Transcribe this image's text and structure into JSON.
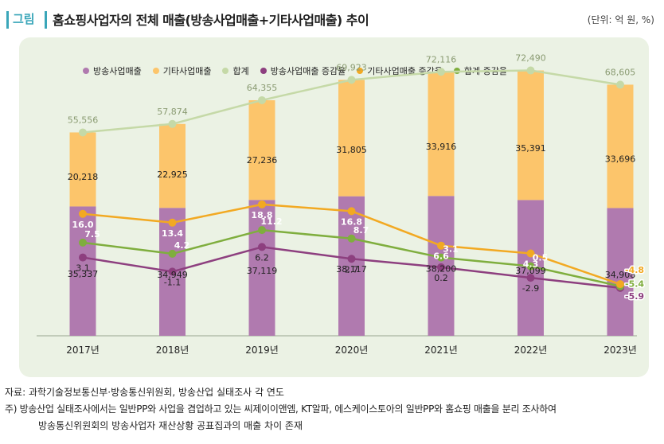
{
  "header": {
    "tag": "그림",
    "title": "홈쇼핑사업자의 전체 매출(방송사업매출+기타사업매출) 추이",
    "unit": "(단위: 억 원, %)"
  },
  "chart_data": {
    "type": "bar",
    "stacked": true,
    "categories": [
      "2017년",
      "2018년",
      "2019년",
      "2020년",
      "2021년",
      "2022년",
      "2023년"
    ],
    "series": [
      {
        "name": "방송사업매출",
        "kind": "bar",
        "color": "#b07aaf",
        "values": [
          35337,
          34949,
          37119,
          38117,
          38200,
          37099,
          34908
        ],
        "labels": [
          "35,337",
          "34,949",
          "37,119",
          "38,117",
          "38,200",
          "37,099",
          "34,908"
        ]
      },
      {
        "name": "기타사업매출",
        "kind": "bar",
        "color": "#fcc56b",
        "values": [
          20218,
          22925,
          27236,
          31805,
          33916,
          35391,
          33696
        ],
        "labels": [
          "20,218",
          "22,925",
          "27,236",
          "31,805",
          "33,916",
          "35,391",
          "33,696"
        ]
      },
      {
        "name": "합계",
        "kind": "line",
        "color": "#c5d9a7",
        "values": [
          55556,
          57874,
          64355,
          69923,
          72116,
          72490,
          68605
        ],
        "labels": [
          "55,556",
          "57,874",
          "64,355",
          "69,923",
          "72,116",
          "72,490",
          "68,605"
        ]
      },
      {
        "name": "방송사업매출 증감율",
        "kind": "line",
        "color": "#8d3f7f",
        "values": [
          3.1,
          -1.1,
          6.2,
          2.7,
          0.2,
          -2.9,
          -5.9
        ],
        "labels": [
          "3.1",
          "-1.1",
          "6.2",
          "2.7",
          "0.2",
          "-2.9",
          "-5.9"
        ]
      },
      {
        "name": "기타사업매출  증감율",
        "kind": "line",
        "color": "#f2a922",
        "values": [
          16.0,
          13.4,
          18.8,
          16.8,
          6.6,
          4.3,
          -4.8
        ],
        "labels": [
          "16.0",
          "13.4",
          "18.8",
          "16.8",
          "6.6",
          "4.3",
          "-4.8"
        ]
      },
      {
        "name": "합계  증감율",
        "kind": "line",
        "color": "#7fae3e",
        "values": [
          7.5,
          4.2,
          11.2,
          8.7,
          3.1,
          0.5,
          -5.4
        ],
        "labels": [
          "7.5",
          "4.2",
          "11.2",
          "8.7",
          "3.1",
          "0.5",
          "-5.4"
        ]
      }
    ],
    "ylim_amount": [
      0,
      80000
    ],
    "ylim_rate": [
      -8,
      40
    ],
    "title": "",
    "xlabel": "",
    "ylabel": ""
  },
  "footer": {
    "source": "자료: 과학기술정보통신부·방송통신위원회, 방송산업 실태조사 각 연도",
    "note_line1": "주) 방송산업 실태조사에서는 일반PP와 사업을 겸업하고 있는 씨제이이앤엠, KT알파, 에스케이스토아의 일반PP와 홈쇼핑 매출을 분리 조사하여",
    "note_line2": "방송통신위원회의 방송사업자 재산상황 공표집과의 매출 차이 존재"
  }
}
